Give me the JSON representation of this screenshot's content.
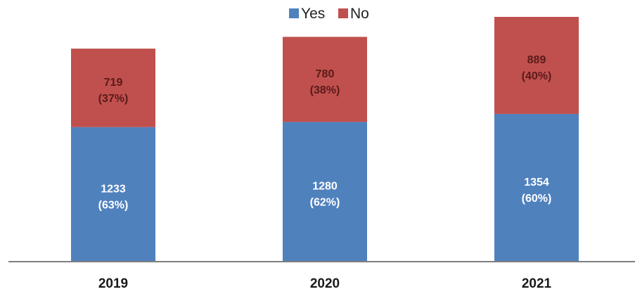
{
  "chart_data": {
    "type": "bar",
    "stacked": true,
    "categories": [
      "2019",
      "2020",
      "2021"
    ],
    "series": [
      {
        "name": "Yes",
        "color": "#4F81BD",
        "values": [
          1233,
          1280,
          1354
        ],
        "labels": [
          "1233",
          "1280",
          "1354"
        ],
        "percent_labels": [
          "(63%)",
          "(62%)",
          "(60%)"
        ]
      },
      {
        "name": "No",
        "color": "#C0504D",
        "values": [
          719,
          780,
          889
        ],
        "labels": [
          "719",
          "780",
          "889"
        ],
        "percent_labels": [
          "(37%)",
          "(38%)",
          "(40%)"
        ]
      }
    ],
    "legend_position": "top-center",
    "grid": false,
    "ylim": [
      0,
      2300
    ],
    "colors": {
      "yes_label": "#FFFFFF",
      "no_label": "#5A1A1A",
      "axis": "#7F7F7F"
    }
  }
}
